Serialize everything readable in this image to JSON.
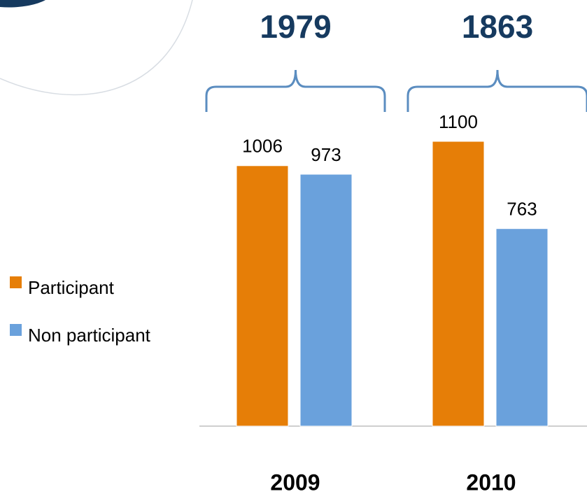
{
  "chart_data": {
    "type": "bar",
    "categories": [
      "2009",
      "2010"
    ],
    "series": [
      {
        "name": "Participant",
        "color": "#e67e07",
        "values": [
          1006,
          1100
        ]
      },
      {
        "name": "Non participant",
        "color": "#6aa1dc",
        "values": [
          973,
          763
        ]
      }
    ],
    "group_totals": [
      1979,
      1863
    ]
  }
}
